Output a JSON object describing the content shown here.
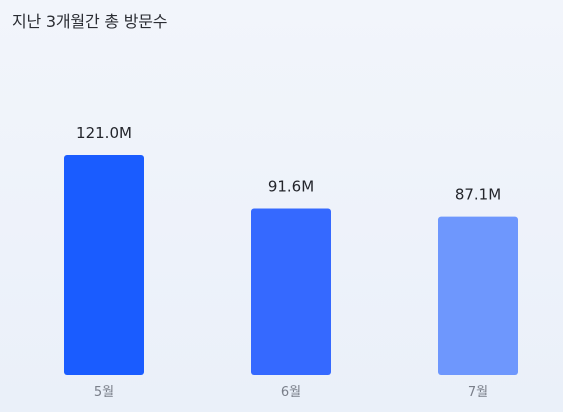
{
  "chart_data": {
    "type": "bar",
    "title": "지난 3개월간 총 방문수",
    "categories": [
      "5월",
      "6월",
      "7월"
    ],
    "values": [
      121.0,
      91.6,
      87.1
    ],
    "value_labels": [
      "121.0M",
      "91.6M",
      "87.1M"
    ],
    "unit": "M",
    "bar_colors": [
      "#1a5cff",
      "#3569ff",
      "#6e97fd"
    ],
    "ylim": [
      0,
      121.0
    ],
    "grid": false,
    "legend": "none"
  }
}
